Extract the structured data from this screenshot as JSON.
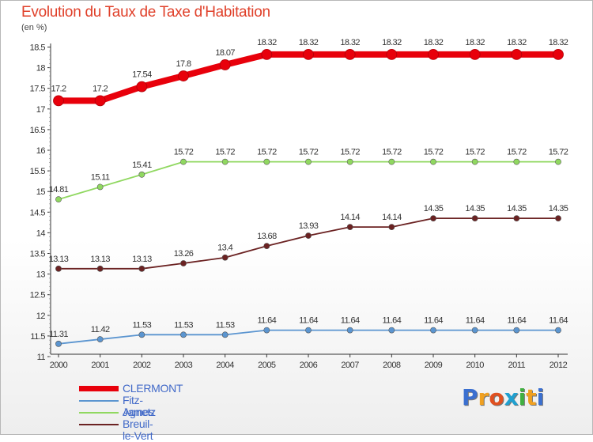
{
  "title": "Evolution du Taux de Taxe d'Habitation",
  "unit": "(en %)",
  "logo": {
    "letters": [
      "P",
      "r",
      "o",
      "x",
      "i",
      "t",
      "i"
    ],
    "colors": [
      "#3a6fd0",
      "#f0a020",
      "#e05020",
      "#20a0d0",
      "#40b040",
      "#f0a020",
      "#3a6fd0"
    ]
  },
  "chart_data": {
    "type": "line",
    "title": "Evolution du Taux de Taxe d'Habitation",
    "ylabel": "(en %)",
    "xlabel": "",
    "x": [
      "2000",
      "2001",
      "2002",
      "2003",
      "2004",
      "2005",
      "2006",
      "2007",
      "2008",
      "2009",
      "2010",
      "2011",
      "2012"
    ],
    "ylim": [
      11,
      18.5
    ],
    "yticks": [
      "11",
      "11.5",
      "12",
      "12.5",
      "13",
      "13.5",
      "14",
      "14.5",
      "15",
      "15.5",
      "16",
      "16.5",
      "17",
      "17.5",
      "18",
      "18.5"
    ],
    "grid": false,
    "legend_position": "bottom-left",
    "series": [
      {
        "name": "CLERMONT",
        "color": "#e8000b",
        "values": [
          17.2,
          17.2,
          17.54,
          17.8,
          18.07,
          18.32,
          18.32,
          18.32,
          18.32,
          18.32,
          18.32,
          18.32,
          18.32
        ],
        "labels": [
          "17.2",
          "17.2",
          "17.54",
          "17.8",
          "18.07",
          "18.32",
          "18.32",
          "18.32",
          "18.32",
          "18.32",
          "18.32",
          "18.32",
          "18.32"
        ]
      },
      {
        "name": "Fitz-James",
        "color": "#5b95d0",
        "values": [
          11.31,
          11.42,
          11.53,
          11.53,
          11.53,
          11.64,
          11.64,
          11.64,
          11.64,
          11.64,
          11.64,
          11.64,
          11.64
        ],
        "labels": [
          "11.31",
          "11.42",
          "11.53",
          "11.53",
          "11.53",
          "11.64",
          "11.64",
          "11.64",
          "11.64",
          "11.64",
          "11.64",
          "11.64",
          "11.64"
        ]
      },
      {
        "name": "Agnetz",
        "color": "#90d860",
        "values": [
          14.81,
          15.11,
          15.41,
          15.72,
          15.72,
          15.72,
          15.72,
          15.72,
          15.72,
          15.72,
          15.72,
          15.72,
          15.72
        ],
        "labels": [
          "14.81",
          "15.11",
          "15.41",
          "15.72",
          "15.72",
          "15.72",
          "15.72",
          "15.72",
          "15.72",
          "15.72",
          "15.72",
          "15.72",
          "15.72"
        ]
      },
      {
        "name": "Breuil-le-Vert",
        "color": "#6b2222",
        "values": [
          13.13,
          13.13,
          13.13,
          13.26,
          13.4,
          13.68,
          13.93,
          14.14,
          14.14,
          14.35,
          14.35,
          14.35,
          14.35
        ],
        "labels": [
          "13.13",
          "13.13",
          "13.13",
          "13.26",
          "13.4",
          "13.68",
          "13.93",
          "14.14",
          "14.14",
          "14.35",
          "14.35",
          "14.35",
          "14.35"
        ]
      }
    ]
  }
}
